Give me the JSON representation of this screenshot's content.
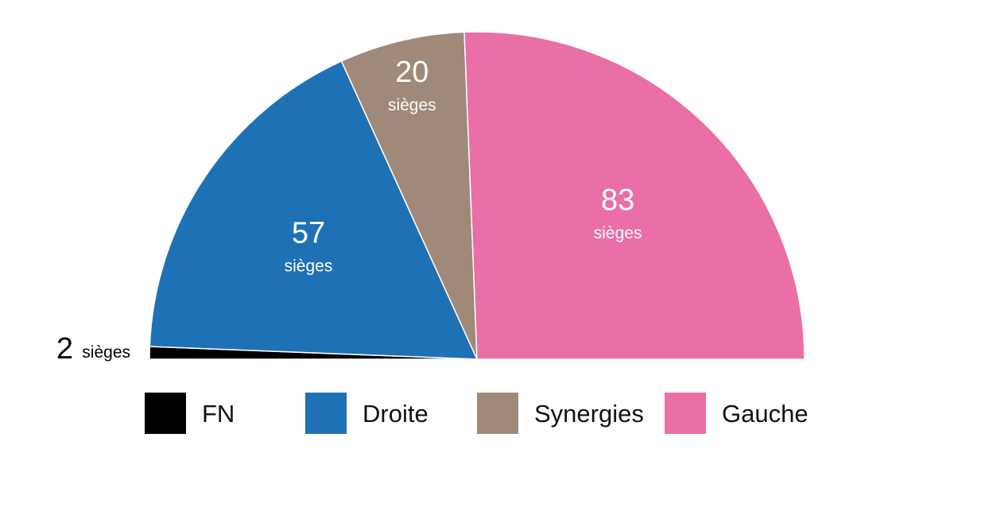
{
  "chart_data": {
    "type": "pie",
    "variant": "semicircle",
    "title": "",
    "unit_label": "sièges",
    "slices": [
      {
        "name": "FN",
        "value": 2,
        "color": "#000000",
        "label_number": "2",
        "label_unit": "sièges",
        "label_position": "outside-left"
      },
      {
        "name": "Droite",
        "value": 57,
        "color": "#1f71b5",
        "label_number": "57",
        "label_unit": "sièges",
        "label_position": "inside"
      },
      {
        "name": "Synergies",
        "value": 20,
        "color": "#a08979",
        "label_number": "20",
        "label_unit": "sièges",
        "label_position": "inside"
      },
      {
        "name": "Gauche",
        "value": 83,
        "color": "#e96fa6",
        "label_number": "83",
        "label_unit": "sièges",
        "label_position": "inside"
      }
    ],
    "legend": {
      "placement": "bottom",
      "entries": [
        "FN",
        "Droite",
        "Synergies",
        "Gauche"
      ]
    }
  }
}
